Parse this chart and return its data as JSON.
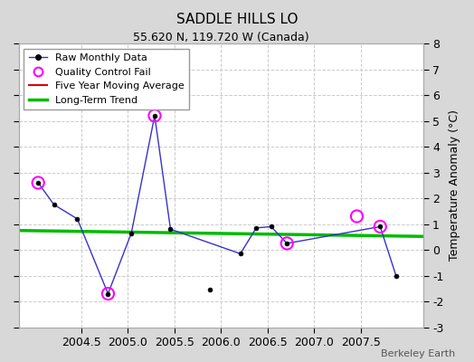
{
  "title": "SADDLE HILLS LO",
  "subtitle": "55.620 N, 119.720 W (Canada)",
  "ylabel": "Temperature Anomaly (°C)",
  "credit": "Berkeley Earth",
  "xlim": [
    2003.83,
    2008.17
  ],
  "ylim": [
    -3,
    8
  ],
  "yticks": [
    -3,
    -2,
    -1,
    0,
    1,
    2,
    3,
    4,
    5,
    6,
    7,
    8
  ],
  "xticks": [
    2004.5,
    2005.0,
    2005.5,
    2006.0,
    2006.5,
    2007.0,
    2007.5
  ],
  "raw_x": [
    2004.04,
    2004.21,
    2004.46,
    2004.79,
    2005.04,
    2005.29,
    2005.46,
    2006.21,
    2006.38,
    2006.54,
    2006.71,
    2007.71,
    2007.88
  ],
  "raw_y": [
    2.6,
    1.75,
    1.2,
    -1.7,
    0.65,
    5.2,
    0.8,
    -0.15,
    0.85,
    0.9,
    0.25,
    0.9,
    -1.0
  ],
  "isolated_x": [
    2005.88
  ],
  "isolated_y": [
    -1.55
  ],
  "qc_fail_x": [
    2004.04,
    2004.79,
    2005.29,
    2006.71,
    2007.46,
    2007.71
  ],
  "qc_fail_y": [
    2.6,
    -1.7,
    5.2,
    0.25,
    1.3,
    0.9
  ],
  "trend_x": [
    2003.83,
    2008.17
  ],
  "trend_y": [
    0.75,
    0.52
  ],
  "bg_color": "#d8d8d8",
  "plot_bg_color": "#ffffff",
  "raw_line_color": "#3333cc",
  "raw_marker_color": "#000000",
  "qc_color": "#ff00ff",
  "trend_color": "#00bb00",
  "mavg_color": "#dd0000",
  "grid_color": "#cccccc"
}
